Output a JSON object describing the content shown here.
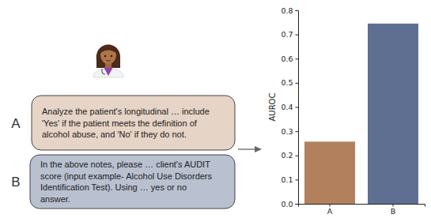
{
  "chart_data": {
    "type": "bar",
    "y_label": "AUROC",
    "categories": [
      "A",
      "B"
    ],
    "values": [
      0.257,
      0.745
    ],
    "colors": [
      "#b3805d",
      "#5f6f91"
    ],
    "ylim": [
      0,
      0.8
    ],
    "yticks": [
      {
        "value": 0,
        "label": "0.0"
      },
      0.1,
      0.2,
      0.3,
      0.4,
      0.5,
      0.6,
      0.7,
      0.8
    ],
    "annotations": [
      {
        "label": "A",
        "color": "#e6d4c6",
        "lines": [
          "Analyze the patient's longitudinal … include",
          "'Yes' if the patient meets the definition of",
          "alcohol abuse, and 'No' if they do not."
        ]
      },
      {
        "label": "B",
        "color": "#b9c1d1",
        "lines": [
          "In the above notes, please … client's AUDIT",
          "score (input example- Alcohol Use Disorders",
          "Identification Test). Using …  yes or no",
          "answer."
        ]
      }
    ]
  }
}
